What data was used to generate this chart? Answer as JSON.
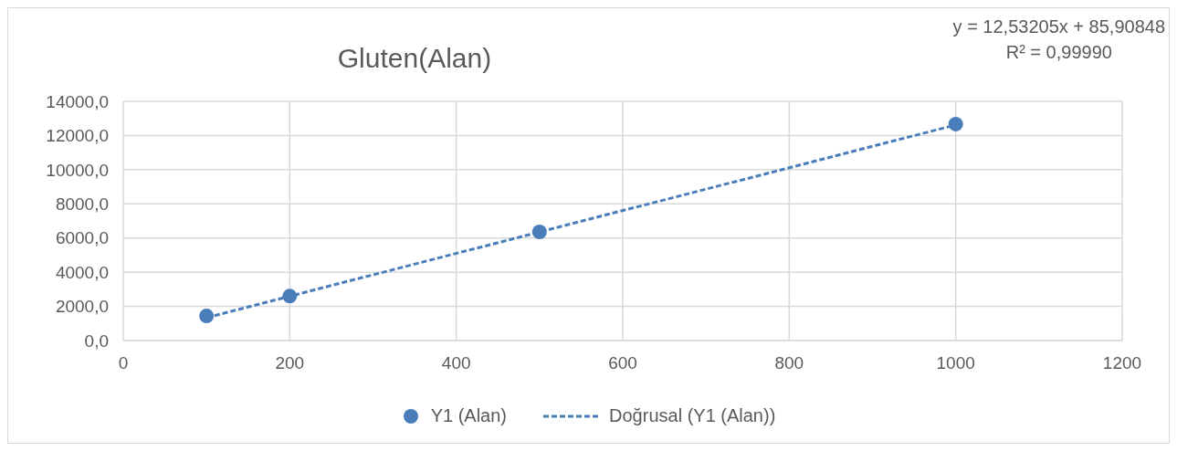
{
  "chart_data": {
    "type": "scatter",
    "title": "Gluten(Alan)",
    "annotations": [
      "y = 12,53205x + 85,90848",
      "R² = 0,99990"
    ],
    "xlim": [
      0,
      1200
    ],
    "xticks": [
      0,
      200,
      400,
      600,
      800,
      1000,
      1200
    ],
    "ylim": [
      0,
      14000
    ],
    "yticks": [
      {
        "value": 0,
        "label": "0,0"
      },
      {
        "value": 2000,
        "label": "2000,0"
      },
      {
        "value": 4000,
        "label": "4000,0"
      },
      {
        "value": 6000,
        "label": "6000,0"
      },
      {
        "value": 8000,
        "label": "8000,0"
      },
      {
        "value": 10000,
        "label": "10000,0"
      },
      {
        "value": 12000,
        "label": "12000,0"
      },
      {
        "value": 14000,
        "label": "14000,0"
      }
    ],
    "grid": true,
    "legend": "bottom",
    "series": [
      {
        "name": "Y1 (Alan)",
        "marker": "circle",
        "color": "#4a7ebb",
        "x": [
          100,
          200,
          500,
          1000
        ],
        "values": [
          1440,
          2600,
          6360,
          12670
        ]
      },
      {
        "name": "Doğrusal (Y1 (Alan))",
        "type": "line",
        "line_style": "dashed",
        "color": "#4a7ebb",
        "x": [
          100,
          1000
        ],
        "values": [
          1340,
          12620
        ]
      }
    ]
  }
}
